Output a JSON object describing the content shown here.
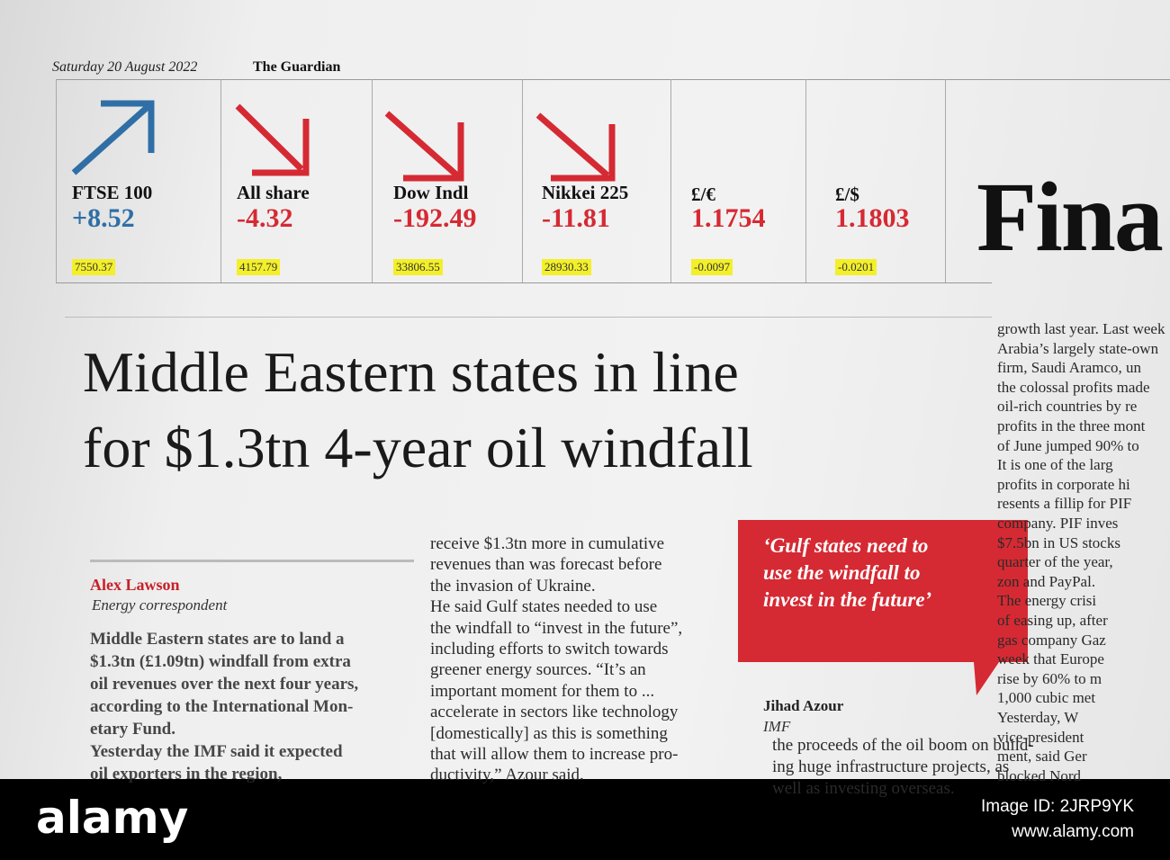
{
  "header": {
    "date": "Saturday 20 August 2022",
    "paper": "The Guardian",
    "section": "Fina"
  },
  "markets": [
    {
      "name": "FTSE 100",
      "change": "+8.52",
      "level": "7550.37",
      "direction": "up"
    },
    {
      "name": "All share",
      "change": "-4.32",
      "level": "4157.79",
      "direction": "down"
    },
    {
      "name": "Dow Indl",
      "change": "-192.49",
      "level": "33806.55",
      "direction": "down"
    },
    {
      "name": "Nikkei 225",
      "change": "-11.81",
      "level": "28930.33",
      "direction": "down"
    },
    {
      "name": "£/€",
      "change": "1.1754",
      "level": "-0.0097",
      "direction": "none"
    },
    {
      "name": "£/$",
      "change": "1.1803",
      "level": "-0.0201",
      "direction": "none"
    }
  ],
  "article": {
    "headline": [
      "Middle Eastern states in line",
      "for $1.3tn 4-year oil windfall"
    ],
    "byline": {
      "name": "Alex Lawson",
      "role": "Energy correspondent"
    },
    "column1": [
      "Middle Eastern states are to land a",
      "$1.3tn (£1.09tn) windfall from extra",
      "oil revenues over the next four years,",
      "according to the International Mon-",
      "etary Fund.",
      "Yesterday the IMF said it expected",
      "oil exporters in the region,"
    ],
    "column2": [
      "receive $1.3tn more in cumulative",
      "revenues than was forecast before",
      "the invasion of Ukraine.",
      "He said Gulf states needed to use",
      "the windfall to “invest in the future”,",
      "including efforts to switch towards",
      "greener energy sources. “It’s an",
      "important moment for them to ...",
      "accelerate in sectors like technology",
      "[domestically] as this is something",
      "that will allow them to increase pro-",
      "ductivity,” Azour said."
    ],
    "pullquote": {
      "lines": [
        "‘Gulf states need to",
        "use the windfall to",
        "invest in the future’"
      ],
      "name": "Jihad Azour",
      "org": "IMF"
    },
    "column3": [
      "the proceeds of the oil boom on build-",
      "ing huge infrastructure projects, as",
      "well as investing overseas."
    ],
    "column4": [
      "growth last year. Last week",
      "Arabia’s largely state-own",
      "firm, Saudi Aramco, un",
      "the colossal profits made",
      "oil-rich countries by re",
      "profits in the three mont",
      "of June jumped 90% to",
      "It is one of the larg",
      "profits in corporate hi",
      "resents a fillip for PIF",
      "company. PIF inves",
      "$7.5bn in US stocks",
      "quarter of the year,",
      "zon and PayPal.",
      "The energy crisi",
      "of easing up, after",
      "gas company Gaz",
      "week that Europe",
      "rise by 60% to m",
      "1,000 cubic met",
      "Yesterday, W",
      "vice-president",
      "ment, said Ger",
      "blocked Nord"
    ]
  },
  "watermark": {
    "logo": "alamy",
    "image_id": "Image ID: 2JRP9YK",
    "url": "www.alamy.com"
  }
}
